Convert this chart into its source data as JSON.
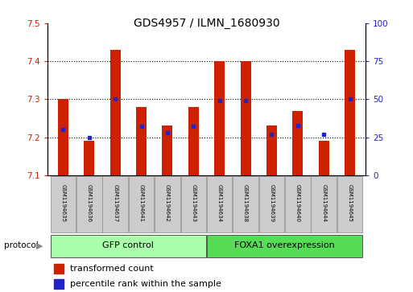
{
  "title": "GDS4957 / ILMN_1680930",
  "samples": [
    "GSM1194635",
    "GSM1194636",
    "GSM1194637",
    "GSM1194641",
    "GSM1194642",
    "GSM1194643",
    "GSM1194634",
    "GSM1194638",
    "GSM1194639",
    "GSM1194640",
    "GSM1194644",
    "GSM1194645"
  ],
  "transformed_count": [
    7.3,
    7.19,
    7.43,
    7.28,
    7.23,
    7.28,
    7.4,
    7.4,
    7.23,
    7.27,
    7.19,
    7.43
  ],
  "percentile_rank": [
    30,
    25,
    50,
    32,
    28,
    32,
    49,
    49,
    27,
    33,
    27,
    50
  ],
  "ymin": 7.1,
  "ymax": 7.5,
  "yticks": [
    7.1,
    7.2,
    7.3,
    7.4,
    7.5
  ],
  "right_yticks": [
    0,
    25,
    50,
    75,
    100
  ],
  "bar_color": "#CC2200",
  "percentile_color": "#2222CC",
  "group1_label": "GFP control",
  "group1_count": 6,
  "group2_label": "FOXA1 overexpression",
  "group2_count": 6,
  "group1_color": "#AAFFAA",
  "group2_color": "#55DD55",
  "protocol_label": "protocol",
  "legend_red_label": "transformed count",
  "legend_blue_label": "percentile rank within the sample",
  "background_color": "#FFFFFF",
  "plot_bg_color": "#FFFFFF",
  "bar_width": 0.4
}
